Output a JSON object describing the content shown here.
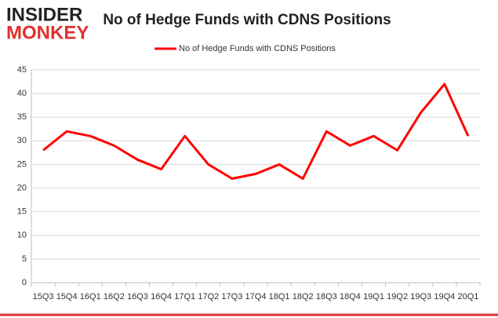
{
  "logo": {
    "line1": "INSIDER",
    "line2": "MONKEY"
  },
  "chart_data": {
    "type": "line",
    "title": "No of Hedge Funds with CDNS Positions",
    "categories": [
      "15Q3",
      "15Q4",
      "16Q1",
      "16Q2",
      "16Q3",
      "16Q4",
      "17Q1",
      "17Q2",
      "17Q3",
      "17Q4",
      "18Q1",
      "18Q2",
      "18Q3",
      "18Q4",
      "19Q1",
      "19Q2",
      "19Q3",
      "19Q4",
      "20Q1"
    ],
    "series": [
      {
        "name": "No of Hedge Funds with CDNS Positions",
        "color": "#ff0000",
        "values": [
          28,
          32,
          31,
          29,
          26,
          24,
          31,
          25,
          22,
          23,
          25,
          22,
          32,
          29,
          31,
          28,
          36,
          42,
          31
        ]
      }
    ],
    "ylim": [
      0,
      45
    ],
    "yticks": [
      0,
      5,
      10,
      15,
      20,
      25,
      30,
      35,
      40,
      45
    ],
    "grid": true,
    "legend": "top"
  }
}
